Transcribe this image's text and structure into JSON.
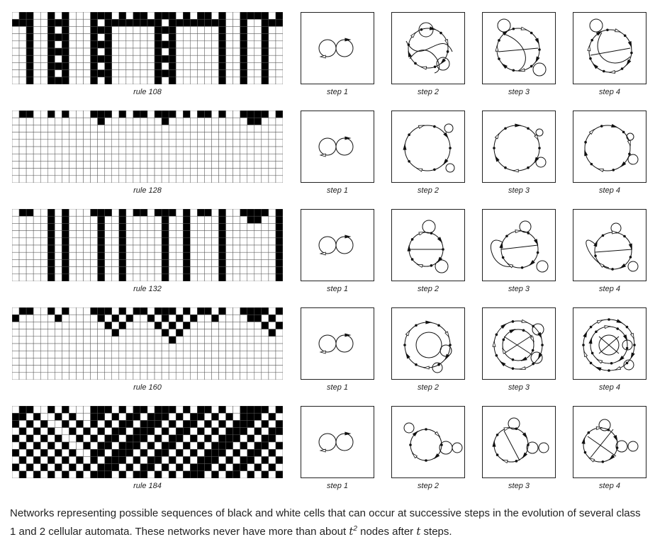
{
  "rows": [
    {
      "rule_label": "rule 108",
      "steps": [
        "step 1",
        "step 2",
        "step 3",
        "step 4"
      ]
    },
    {
      "rule_label": "rule 128",
      "steps": [
        "step 1",
        "step 2",
        "step 3",
        "step 4"
      ]
    },
    {
      "rule_label": "rule 132",
      "steps": [
        "step 1",
        "step 2",
        "step 3",
        "step 4"
      ]
    },
    {
      "rule_label": "rule 160",
      "steps": [
        "step 1",
        "step 2",
        "step 3",
        "step 4"
      ]
    },
    {
      "rule_label": "rule 184",
      "steps": [
        "step 1",
        "step 2",
        "step 3",
        "step 4"
      ]
    }
  ],
  "caption": {
    "part1": "Networks representing possible sequences of black and white cells that can occur at successive steps in the evolution of several class 1 and 2 cellular automata. These networks never have more than about ",
    "t": "t",
    "sup": "2",
    "part2": " nodes after ",
    "t2": "t",
    "part3": " steps."
  },
  "colors": {
    "cell_on": "#000000",
    "cell_off": "#ffffff",
    "grid": "#555555"
  }
}
